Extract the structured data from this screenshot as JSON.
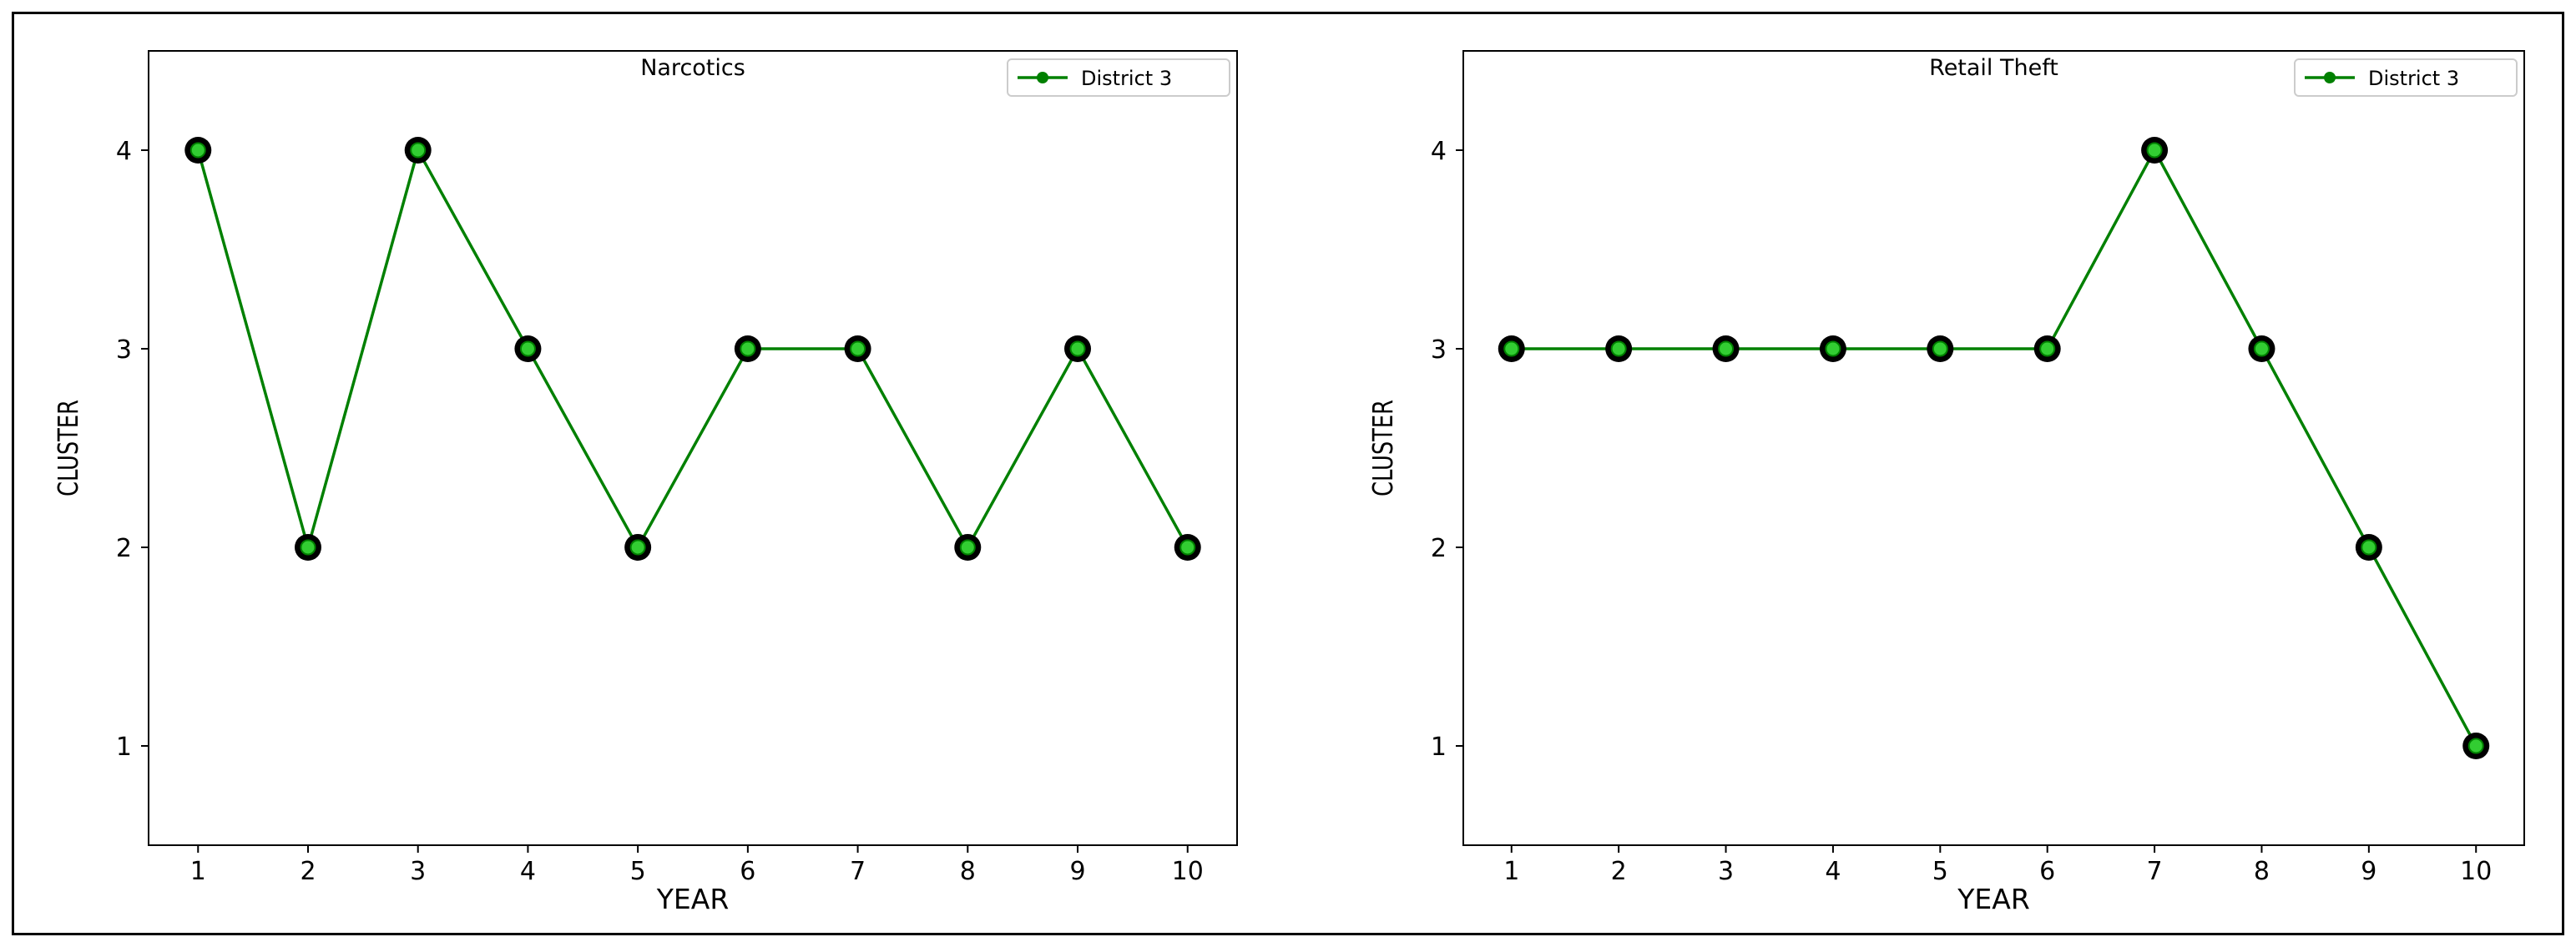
{
  "chart_data": [
    {
      "type": "line",
      "title": "Narcotics",
      "xlabel": "YEAR",
      "ylabel": "CLUSTER",
      "x": [
        1,
        2,
        3,
        4,
        5,
        6,
        7,
        8,
        9,
        10
      ],
      "xlim": [
        0.55,
        10.45
      ],
      "ylim": [
        0.5,
        4.5
      ],
      "xticks": [
        "1",
        "2",
        "3",
        "4",
        "5",
        "6",
        "7",
        "8",
        "9",
        "10"
      ],
      "yticks": [
        "1",
        "2",
        "3",
        "4"
      ],
      "legend_position": "top-right",
      "grid": false,
      "series": [
        {
          "name": "District 3",
          "color": "#008000",
          "marker_fill": "#32cd32",
          "marker_edge": "#000000",
          "values": [
            4,
            2,
            4,
            3,
            2,
            3,
            3,
            2,
            3,
            2
          ]
        }
      ]
    },
    {
      "type": "line",
      "title": "Retail Theft",
      "xlabel": "YEAR",
      "ylabel": "CLUSTER",
      "x": [
        1,
        2,
        3,
        4,
        5,
        6,
        7,
        8,
        9,
        10
      ],
      "xlim": [
        0.55,
        10.45
      ],
      "ylim": [
        0.5,
        4.5
      ],
      "xticks": [
        "1",
        "2",
        "3",
        "4",
        "5",
        "6",
        "7",
        "8",
        "9",
        "10"
      ],
      "yticks": [
        "1",
        "2",
        "3",
        "4"
      ],
      "legend_position": "top-right",
      "grid": false,
      "series": [
        {
          "name": "District 3",
          "color": "#008000",
          "marker_fill": "#32cd32",
          "marker_edge": "#000000",
          "values": [
            3,
            3,
            3,
            3,
            3,
            3,
            4,
            3,
            2,
            1
          ]
        }
      ]
    }
  ]
}
